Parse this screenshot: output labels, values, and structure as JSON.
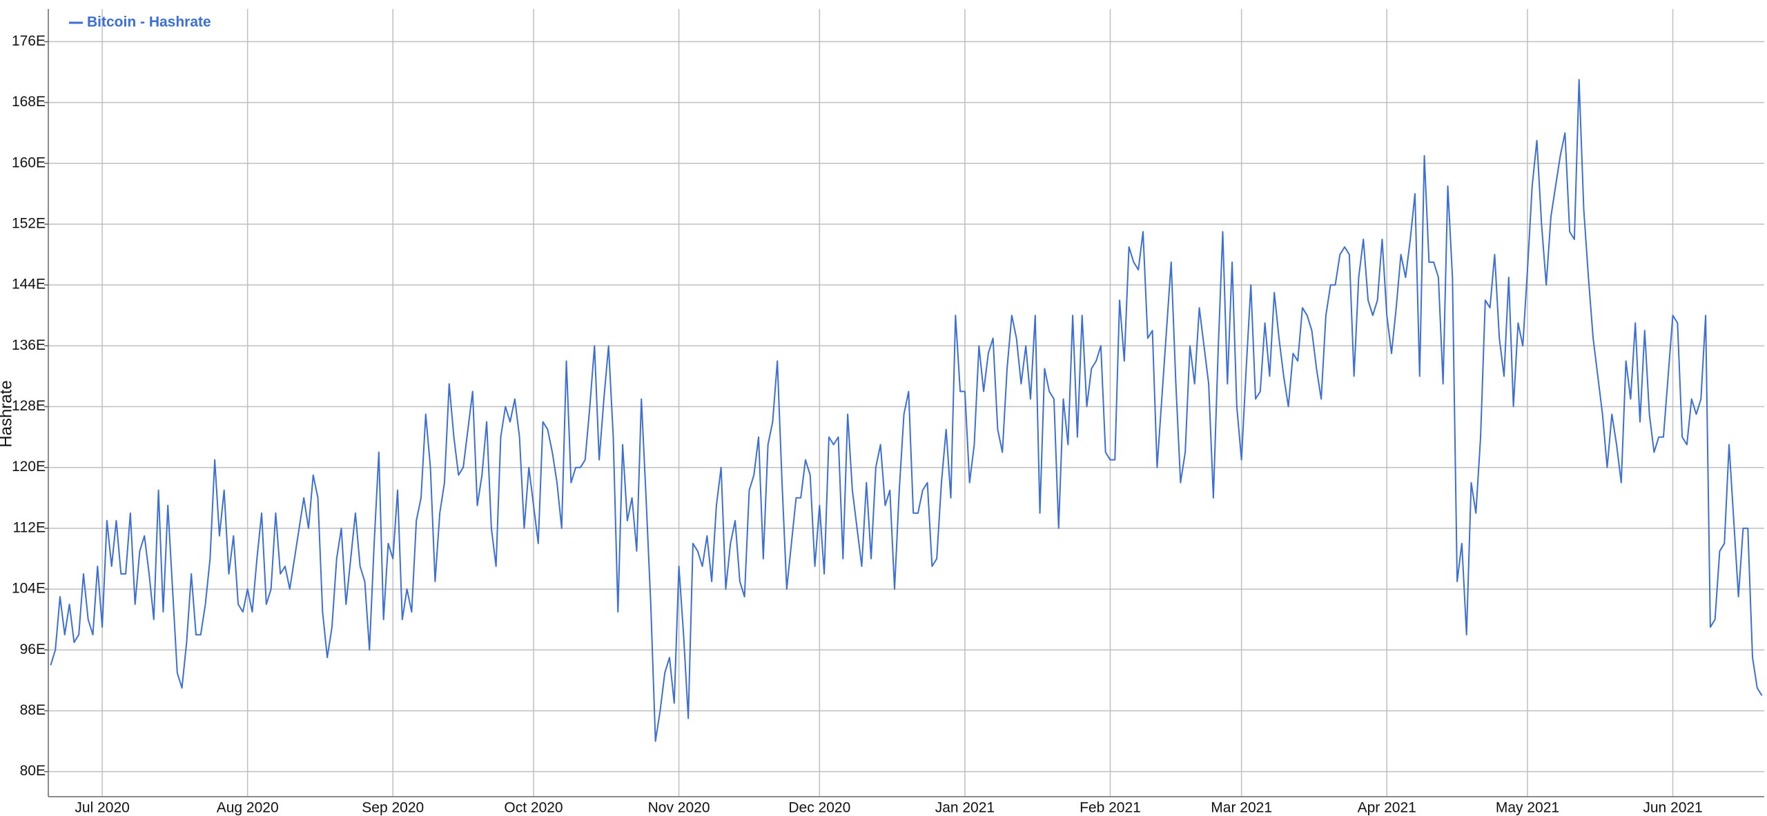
{
  "chart_data": {
    "type": "line",
    "y_label": "Hashrate",
    "categories": [
      null,
      null,
      null,
      null,
      null,
      null,
      null,
      null,
      null,
      null,
      null,
      "Jul 2020",
      null,
      null,
      null,
      null,
      null,
      null,
      null,
      null,
      null,
      null,
      null,
      null,
      null,
      null,
      null,
      null,
      null,
      null,
      null,
      null,
      null,
      null,
      null,
      null,
      null,
      null,
      null,
      null,
      null,
      null,
      "Aug 2020",
      null,
      null,
      null,
      null,
      null,
      null,
      null,
      null,
      null,
      null,
      null,
      null,
      null,
      null,
      null,
      null,
      null,
      null,
      null,
      null,
      null,
      null,
      null,
      null,
      null,
      null,
      null,
      null,
      null,
      null,
      "Sep 2020",
      null,
      null,
      null,
      null,
      null,
      null,
      null,
      null,
      null,
      null,
      null,
      null,
      null,
      null,
      null,
      null,
      null,
      null,
      null,
      null,
      null,
      null,
      null,
      null,
      null,
      null,
      null,
      null,
      null,
      "Oct 2020",
      null,
      null,
      null,
      null,
      null,
      null,
      null,
      null,
      null,
      null,
      null,
      null,
      null,
      null,
      null,
      null,
      null,
      null,
      null,
      null,
      null,
      null,
      null,
      null,
      null,
      null,
      null,
      null,
      null,
      null,
      "Nov 2020",
      null,
      null,
      null,
      null,
      null,
      null,
      null,
      null,
      null,
      null,
      null,
      null,
      null,
      null,
      null,
      null,
      null,
      null,
      null,
      null,
      null,
      null,
      null,
      null,
      null,
      null,
      null,
      null,
      null,
      "Dec 2020",
      null,
      null,
      null,
      null,
      null,
      null,
      null,
      null,
      null,
      null,
      null,
      null,
      null,
      null,
      null,
      null,
      null,
      null,
      null,
      null,
      null,
      null,
      null,
      null,
      null,
      null,
      null,
      null,
      null,
      null,
      "Jan 2021",
      null,
      null,
      null,
      null,
      null,
      null,
      null,
      null,
      null,
      null,
      null,
      null,
      null,
      null,
      null,
      null,
      null,
      null,
      null,
      null,
      null,
      null,
      null,
      null,
      null,
      null,
      null,
      null,
      null,
      null,
      "Feb 2021",
      null,
      null,
      null,
      null,
      null,
      null,
      null,
      null,
      null,
      null,
      null,
      null,
      null,
      null,
      null,
      null,
      null,
      null,
      null,
      null,
      null,
      null,
      null,
      null,
      null,
      null,
      null,
      "Mar 2021",
      null,
      null,
      null,
      null,
      null,
      null,
      null,
      null,
      null,
      null,
      null,
      null,
      null,
      null,
      null,
      null,
      null,
      null,
      null,
      null,
      null,
      null,
      null,
      null,
      null,
      null,
      null,
      null,
      null,
      null,
      "Apr 2021",
      null,
      null,
      null,
      null,
      null,
      null,
      null,
      null,
      null,
      null,
      null,
      null,
      null,
      null,
      null,
      null,
      null,
      null,
      null,
      null,
      null,
      null,
      null,
      null,
      null,
      null,
      null,
      null,
      null,
      "May 2021",
      null,
      null,
      null,
      null,
      null,
      null,
      null,
      null,
      null,
      null,
      null,
      null,
      null,
      null,
      null,
      null,
      null,
      null,
      null,
      null,
      null,
      null,
      null,
      null,
      null,
      null,
      null,
      null,
      null,
      null,
      "Jun 2021",
      null,
      null,
      null,
      null,
      null,
      null,
      null,
      null,
      null,
      null,
      null,
      null,
      null,
      null,
      null,
      null,
      null,
      null,
      null
    ],
    "series": [
      {
        "name": "Bitcoin - Hashrate",
        "color": "#3b6fd4",
        "values": [
          94,
          96,
          103,
          98,
          102,
          97,
          98,
          106,
          100,
          98,
          107,
          99,
          113,
          107,
          113,
          106,
          106,
          114,
          102,
          109,
          111,
          106,
          100,
          117,
          101,
          115,
          104,
          93,
          91,
          97,
          106,
          98,
          98,
          102,
          108,
          121,
          111,
          117,
          106,
          111,
          102,
          101,
          104,
          101,
          108,
          114,
          102,
          104,
          114,
          106,
          107,
          104,
          108,
          112,
          116,
          112,
          119,
          116,
          101,
          95,
          99,
          108,
          112,
          102,
          108,
          114,
          107,
          105,
          96,
          110,
          122,
          100,
          110,
          108,
          117,
          100,
          104,
          101,
          113,
          116,
          127,
          120,
          105,
          114,
          118,
          131,
          124,
          119,
          120,
          125,
          130,
          115,
          119,
          126,
          112,
          107,
          124,
          128,
          126,
          129,
          124,
          112,
          120,
          115,
          110,
          126,
          125,
          122,
          118,
          112,
          134,
          118,
          120,
          120,
          121,
          128,
          136,
          121,
          129,
          136,
          124,
          101,
          123,
          113,
          116,
          109,
          129,
          116,
          102,
          84,
          88,
          93,
          95,
          89,
          107,
          98,
          87,
          110,
          109,
          107,
          111,
          105,
          115,
          120,
          104,
          110,
          113,
          105,
          103,
          117,
          119,
          124,
          108,
          123,
          126,
          134,
          118,
          104,
          110,
          116,
          116,
          121,
          119,
          107,
          115,
          106,
          124,
          123,
          124,
          108,
          127,
          117,
          112,
          107,
          118,
          108,
          120,
          123,
          115,
          117,
          104,
          117,
          127,
          130,
          114,
          114,
          117,
          118,
          107,
          108,
          118,
          125,
          116,
          140,
          130,
          130,
          118,
          123,
          136,
          130,
          135,
          137,
          125,
          122,
          133,
          140,
          137,
          131,
          136,
          129,
          140,
          114,
          133,
          130,
          129,
          112,
          129,
          123,
          140,
          124,
          140,
          128,
          133,
          134,
          136,
          122,
          121,
          121,
          142,
          134,
          149,
          147,
          146,
          151,
          137,
          138,
          120,
          129,
          138,
          147,
          131,
          118,
          122,
          136,
          131,
          141,
          136,
          131,
          116,
          135,
          151,
          131,
          147,
          128,
          121,
          133,
          144,
          129,
          130,
          139,
          132,
          143,
          137,
          132,
          128,
          135,
          134,
          141,
          140,
          138,
          133,
          129,
          140,
          144,
          144,
          148,
          149,
          148,
          132,
          145,
          150,
          142,
          140,
          142,
          150,
          140,
          135,
          141,
          148,
          145,
          150,
          156,
          132,
          161,
          147,
          147,
          145,
          131,
          157,
          145,
          105,
          110,
          98,
          118,
          114,
          124,
          142,
          141,
          148,
          137,
          132,
          145,
          128,
          139,
          136,
          146,
          157,
          163,
          152,
          144,
          153,
          157,
          161,
          164,
          151,
          150,
          171,
          154,
          145,
          137,
          132,
          127,
          120,
          127,
          123,
          118,
          134,
          129,
          139,
          126,
          138,
          127,
          122,
          124,
          124,
          132,
          140,
          139,
          124,
          123,
          129,
          127,
          129,
          140,
          99,
          100,
          109,
          110,
          123,
          113,
          103,
          112,
          112,
          95,
          91,
          90
        ]
      }
    ],
    "ylim": [
      76.7,
      180.3
    ],
    "yticks": [
      {
        "value": 80,
        "label": "80E"
      },
      {
        "value": 88,
        "label": "88E"
      },
      {
        "value": 96,
        "label": "96E"
      },
      {
        "value": 104,
        "label": "104E"
      },
      {
        "value": 112,
        "label": "112E"
      },
      {
        "value": 120,
        "label": "120E"
      },
      {
        "value": 128,
        "label": "128E"
      },
      {
        "value": 136,
        "label": "136E"
      },
      {
        "value": 144,
        "label": "144E"
      },
      {
        "value": 152,
        "label": "152E"
      },
      {
        "value": 160,
        "label": "160E"
      },
      {
        "value": 168,
        "label": "168E"
      },
      {
        "value": 176,
        "label": "176E"
      }
    ],
    "grid": true,
    "legend": "top-left"
  }
}
